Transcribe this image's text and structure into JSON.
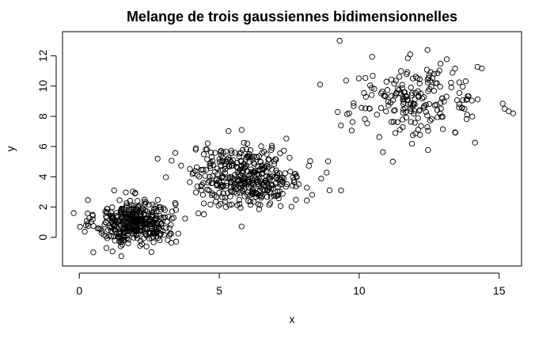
{
  "chart_data": {
    "type": "scatter",
    "title": "Melange de trois gaussiennes bidimensionnelles",
    "xlabel": "x",
    "ylabel": "y",
    "xlim": [
      -0.6,
      15.8
    ],
    "ylim": [
      -1.9,
      13.6
    ],
    "xticks": [
      0,
      5,
      10,
      15
    ],
    "yticks": [
      0,
      2,
      4,
      6,
      8,
      10,
      12
    ],
    "grid": false,
    "legend": "none",
    "marker": "open-circle",
    "point_color": "#000000",
    "clusters": [
      {
        "mean": [
          2.0,
          1.0
        ],
        "sd": [
          0.7,
          0.75
        ],
        "n": 400
      },
      {
        "mean": [
          6.0,
          4.0
        ],
        "sd": [
          1.0,
          1.0
        ],
        "n": 400
      },
      {
        "mean": [
          12.0,
          9.0
        ],
        "sd": [
          1.2,
          1.2
        ],
        "n": 200
      }
    ],
    "notable_points": [
      {
        "x": 9.3,
        "y": 13.0
      },
      {
        "x": 9.35,
        "y": 3.1
      },
      {
        "x": -0.2,
        "y": 1.6
      },
      {
        "x": 0.5,
        "y": -1.0
      },
      {
        "x": 1.5,
        "y": -1.25
      },
      {
        "x": 15.2,
        "y": 8.5
      },
      {
        "x": 8.6,
        "y": 10.1
      },
      {
        "x": 11.2,
        "y": 5.0
      },
      {
        "x": 5.8,
        "y": 7.1
      },
      {
        "x": 2.8,
        "y": 5.2
      }
    ]
  }
}
